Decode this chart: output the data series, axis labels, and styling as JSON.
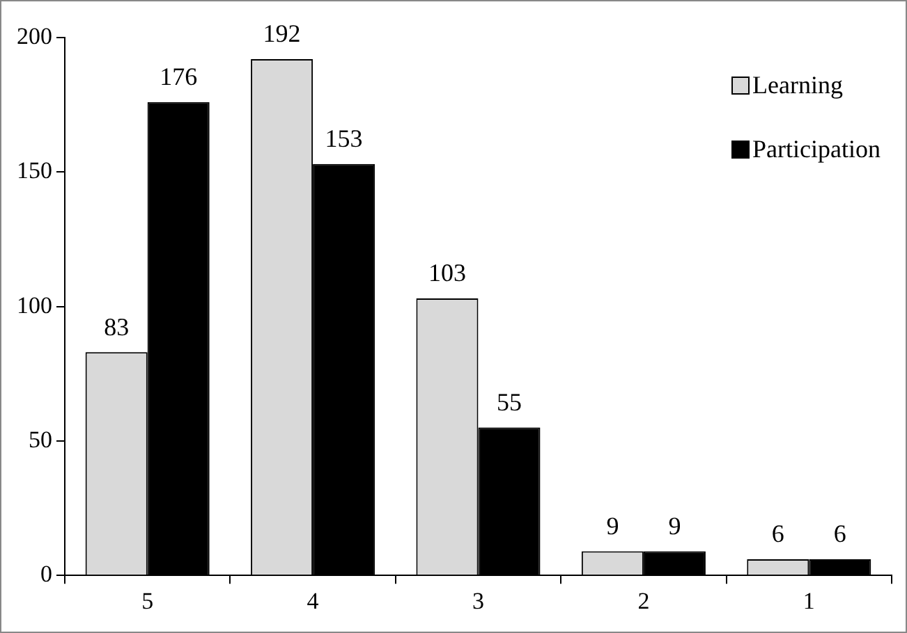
{
  "chart_data": {
    "type": "bar",
    "categories": [
      "5",
      "4",
      "3",
      "2",
      "1"
    ],
    "series": [
      {
        "name": "Learning",
        "color": "#d9d9d9",
        "values": [
          83,
          192,
          103,
          9,
          6
        ]
      },
      {
        "name": "Participation",
        "color": "#000000",
        "values": [
          176,
          153,
          55,
          9,
          6
        ]
      }
    ],
    "ylim": [
      0,
      200
    ],
    "yticks": [
      0,
      50,
      100,
      150,
      200
    ],
    "grid": false,
    "legend": "top right",
    "data_labels": true
  }
}
